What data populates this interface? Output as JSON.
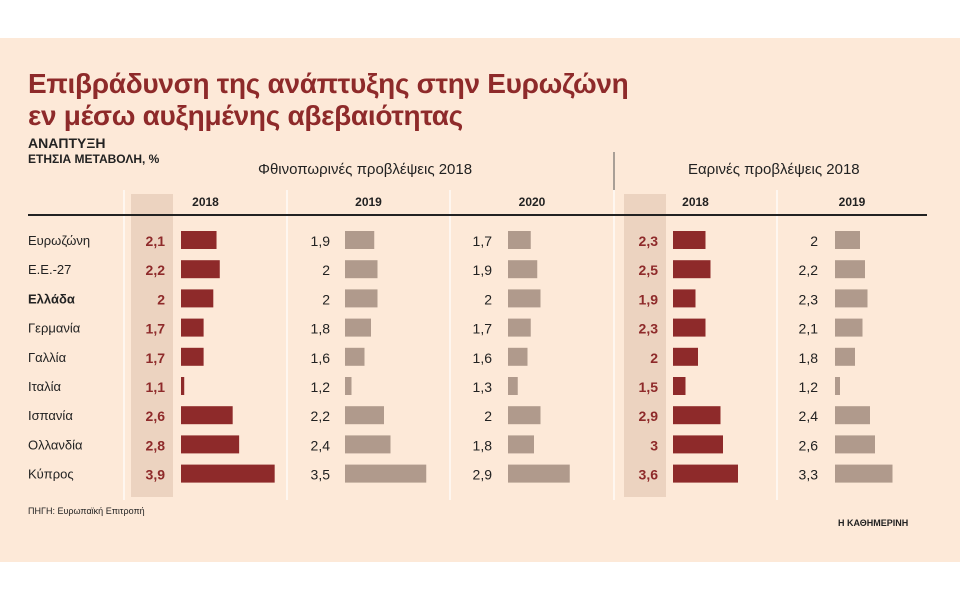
{
  "header": {
    "title_line1": "Επιβράδυνση της ανάπτυξης στην Ευρωζώνη",
    "title_line2": "εν μέσω αυξημένης αβεβαιότητας",
    "subtitle": "ΑΝΑΠΤΥΞΗ",
    "unit": "ΕΤΗΣΙΑ ΜΕΤΑΒΟΛΗ, %"
  },
  "footer": {
    "source": "ΠΗΓΗ: Ευρωπαϊκή Επιτροπή",
    "brand": "Η ΚΑΘΗΜΕΡΙΝΗ"
  },
  "colors": {
    "highlight_bar": "#8e2a2a",
    "neutral_bar": "#b09a8c",
    "highlight_column": "#ecd3c0"
  },
  "chart_data": {
    "type": "bar",
    "title": "Επιβράδυνση της ανάπτυξης στην Ευρωζώνη εν μέσω αυξημένης αβεβαιότητας",
    "categories": [
      "Ευρωζώνη",
      "Ε.Ε.-27",
      "Ελλάδα",
      "Γερμανία",
      "Γαλλία",
      "Ιταλία",
      "Ισπανία",
      "Ολλανδία",
      "Κύπρος"
    ],
    "groups": [
      {
        "name": "Φθινοπωρινές προβλέψεις 2018",
        "series_index": [
          0,
          1,
          2
        ]
      },
      {
        "name": "Εαρινές προβλέψεις  2018",
        "series_index": [
          3,
          4
        ]
      }
    ],
    "series": [
      {
        "name": "2018",
        "values": [
          2.1,
          2.2,
          2,
          1.7,
          1.7,
          1.1,
          2.6,
          2.8,
          3.9
        ],
        "labels": [
          "2,1",
          "2,2",
          "2",
          "1,7",
          "1,7",
          "1,1",
          "2,6",
          "2,8",
          "3,9"
        ],
        "highlight": true
      },
      {
        "name": "2019",
        "values": [
          1.9,
          2,
          2,
          1.8,
          1.6,
          1.2,
          2.2,
          2.4,
          3.5
        ],
        "labels": [
          "1,9",
          "2",
          "2",
          "1,8",
          "1,6",
          "1,2",
          "2,2",
          "2,4",
          "3,5"
        ],
        "highlight": false
      },
      {
        "name": "2020",
        "values": [
          1.7,
          1.9,
          2,
          1.7,
          1.6,
          1.3,
          2,
          1.8,
          2.9
        ],
        "labels": [
          "1,7",
          "1,9",
          "2",
          "1,7",
          "1,6",
          "1,3",
          "2",
          "1,8",
          "2,9"
        ],
        "highlight": false
      },
      {
        "name": "2018",
        "values": [
          2.3,
          2.5,
          1.9,
          2.3,
          2,
          1.5,
          2.9,
          3,
          3.6
        ],
        "labels": [
          "2,3",
          "2,5",
          "1,9",
          "2,3",
          "2",
          "1,5",
          "2,9",
          "3",
          "3,6"
        ],
        "highlight": true
      },
      {
        "name": "2019",
        "values": [
          2,
          2.2,
          2.3,
          2.1,
          1.8,
          1.2,
          2.4,
          2.6,
          3.3
        ],
        "labels": [
          "2",
          "2,2",
          "2,3",
          "2,1",
          "1,8",
          "1,2",
          "2,4",
          "2,6",
          "3,3"
        ],
        "highlight": false
      }
    ],
    "highlight_category": "Ελλάδα",
    "xlim": [
      1,
      4
    ],
    "grid": false,
    "legend": "none"
  }
}
